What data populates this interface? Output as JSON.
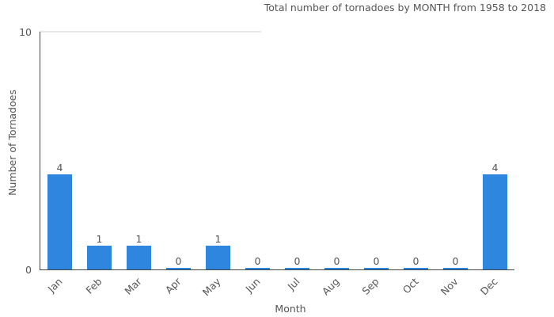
{
  "chart_data": {
    "type": "bar",
    "title": "Total number of tornadoes by MONTH from 1958 to 2018",
    "xlabel": "Month",
    "ylabel": "Number of Tornadoes",
    "categories": [
      "Jan",
      "Feb",
      "Mar",
      "Apr",
      "May",
      "Jun",
      "Jul",
      "Aug",
      "Sep",
      "Oct",
      "Nov",
      "Dec"
    ],
    "values": [
      4,
      1,
      1,
      0,
      1,
      0,
      0,
      0,
      0,
      0,
      0,
      4
    ],
    "ylim": [
      0,
      10
    ],
    "yticks": [
      "0",
      "10"
    ],
    "bar_color": "#2e86de",
    "grid": true
  }
}
